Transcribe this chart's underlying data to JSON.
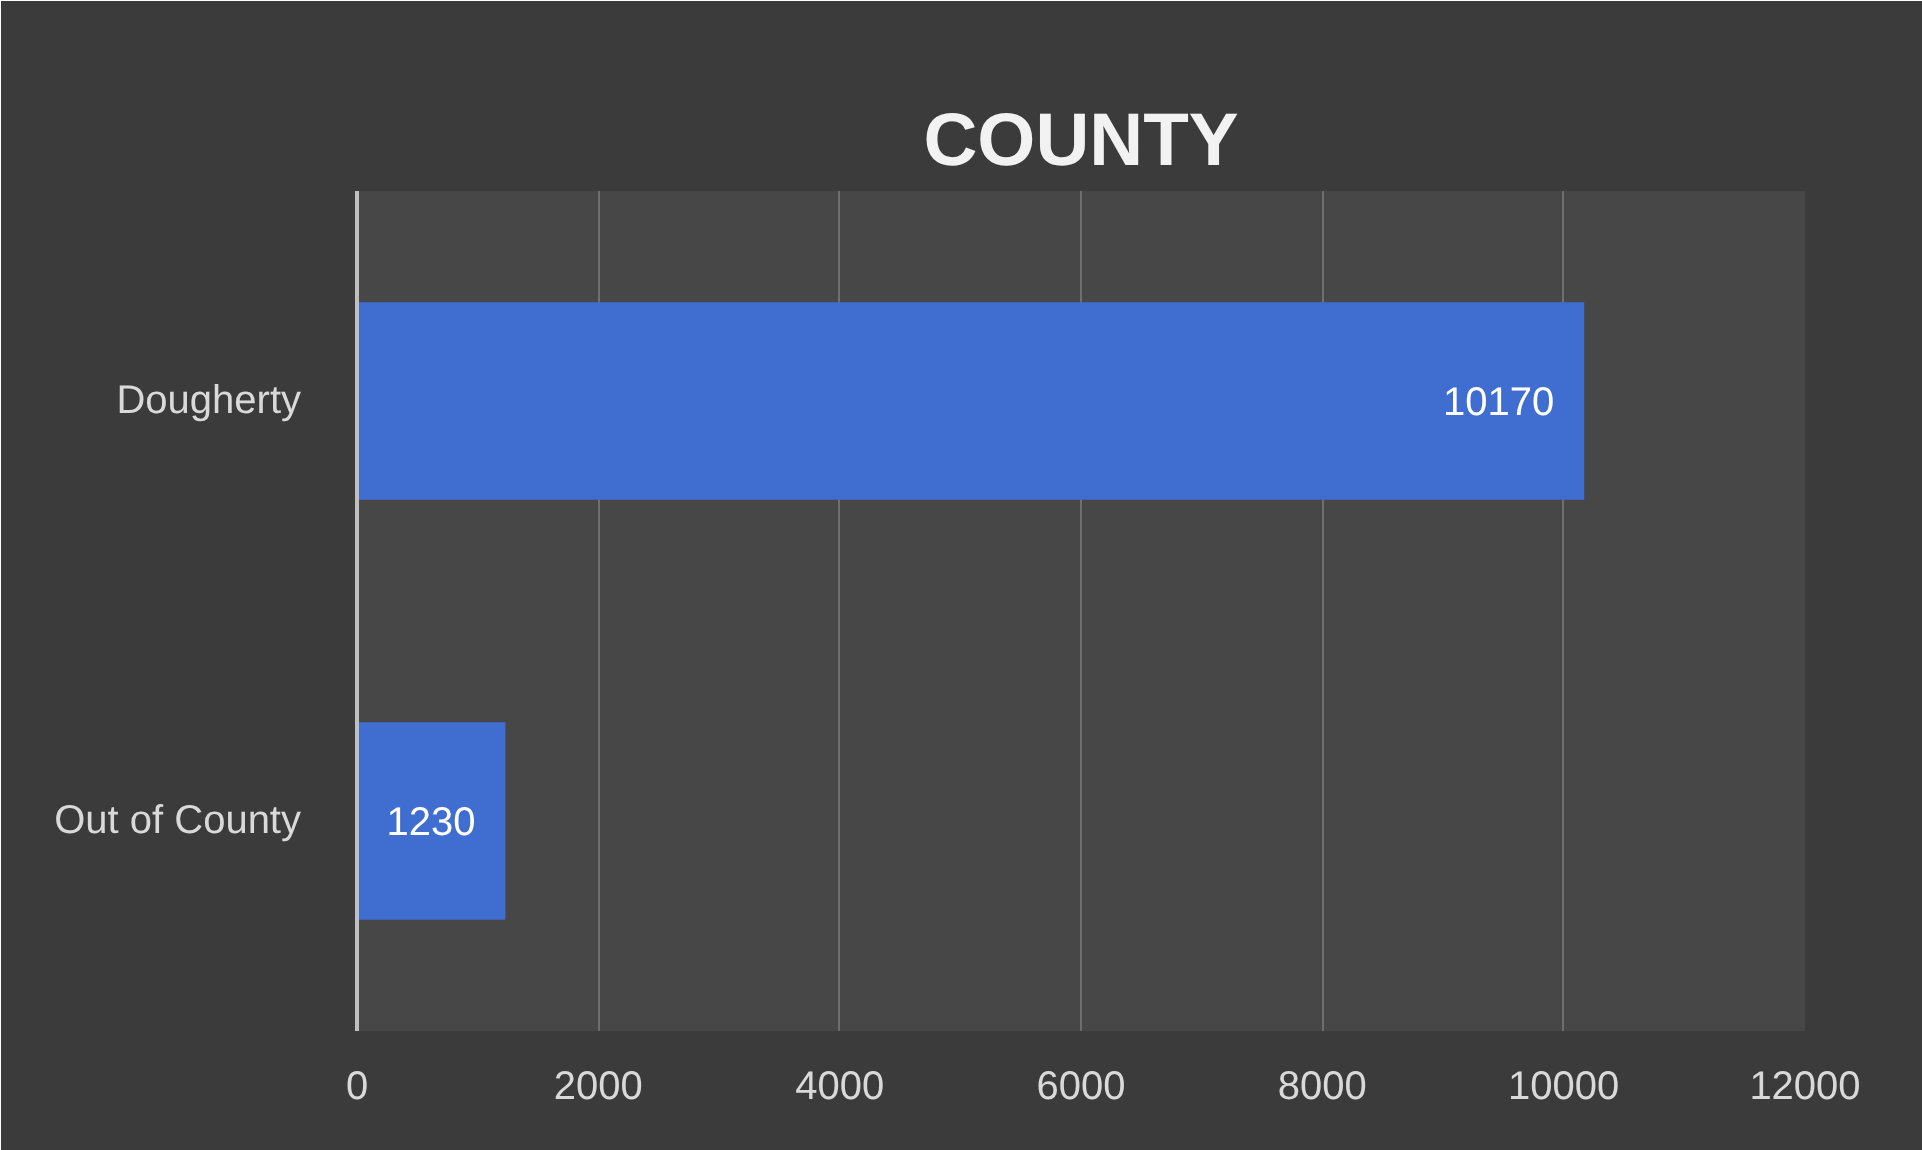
{
  "chart_data": {
    "type": "bar",
    "orientation": "horizontal",
    "title": "COUNTY",
    "categories": [
      "Dougherty",
      "Out of County"
    ],
    "values": [
      10170,
      1230
    ],
    "color": "#3f6ed0",
    "xlim": [
      0,
      12000
    ],
    "xticks": [
      0,
      2000,
      4000,
      6000,
      8000,
      10000,
      12000
    ],
    "grid": "x",
    "data_labels": true
  }
}
